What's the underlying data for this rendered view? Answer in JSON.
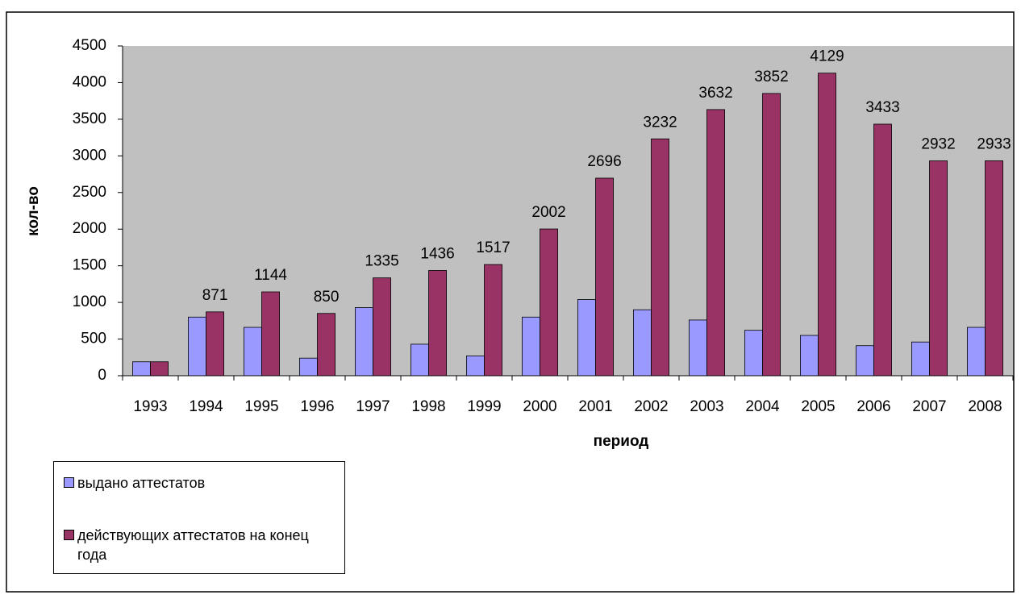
{
  "chart_data": {
    "type": "bar",
    "x_label": "период",
    "y_label": "кол-во",
    "categories": [
      "1993",
      "1994",
      "1995",
      "1996",
      "1997",
      "1998",
      "1999",
      "2000",
      "2001",
      "2002",
      "2003",
      "2004",
      "2005",
      "2006",
      "2007",
      "2008"
    ],
    "series": [
      {
        "name": "выдано аттестатов",
        "color": "#9999ff",
        "values": [
          190,
          800,
          660,
          240,
          930,
          430,
          270,
          800,
          1040,
          900,
          760,
          620,
          550,
          410,
          460,
          660
        ]
      },
      {
        "name": "действующих аттестатов на конец года",
        "color": "#993366",
        "values": [
          190,
          871,
          1144,
          850,
          1335,
          1436,
          1517,
          2002,
          2696,
          3232,
          3632,
          3852,
          4129,
          3433,
          2932,
          2933
        ],
        "value_labels": [
          null,
          "871",
          "1144",
          "850",
          "1335",
          "1436",
          "1517",
          "2002",
          "2696",
          "3232",
          "3632",
          "3852",
          "4129",
          "3433",
          "2932",
          "2933"
        ]
      }
    ],
    "ylim": [
      0,
      4500
    ],
    "yticks": [
      0,
      500,
      1000,
      1500,
      2000,
      2500,
      3000,
      3500,
      4000,
      4500
    ],
    "grid": false,
    "plot_background": "#c0c0c0"
  }
}
